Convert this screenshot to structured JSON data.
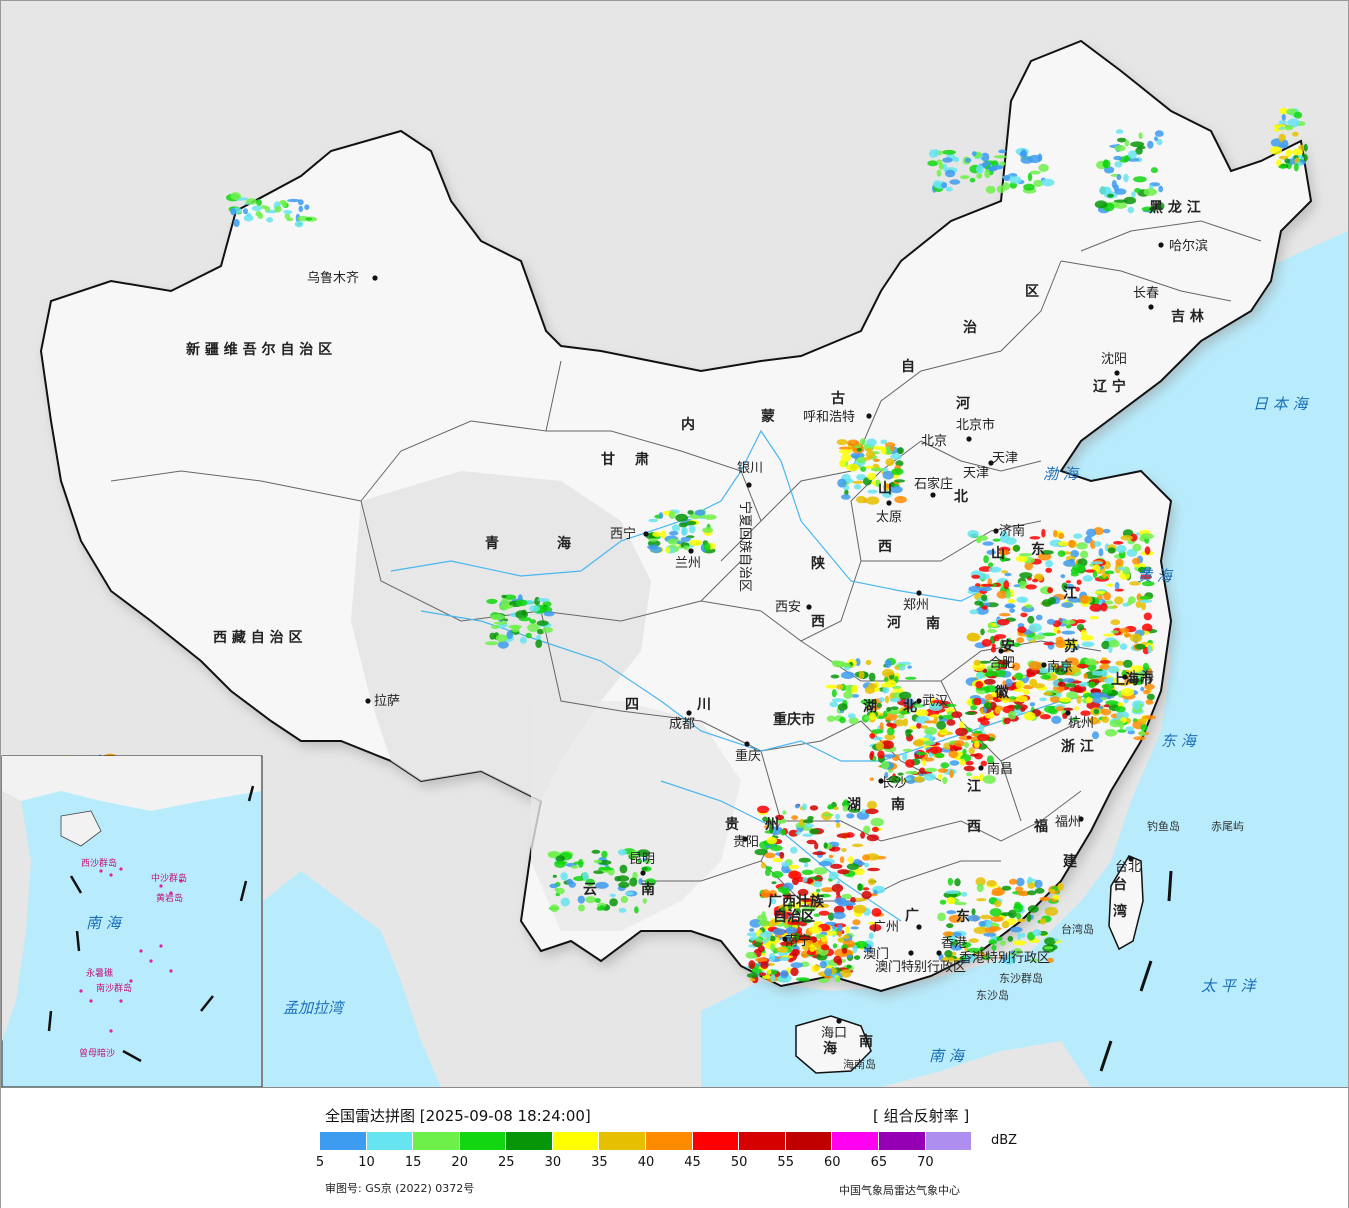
{
  "map": {
    "provinces": [
      {
        "key": "xinjiang",
        "label": "新 疆 维 吾 尔 自 治 区"
      },
      {
        "key": "xizang",
        "label": "西 藏 自 治 区"
      },
      {
        "key": "qinghai_1",
        "label": "青"
      },
      {
        "key": "qinghai_2",
        "label": "海"
      },
      {
        "key": "gansu_1",
        "label": "甘"
      },
      {
        "key": "gansu_2",
        "label": "肃"
      },
      {
        "key": "sichuan_1",
        "label": "四"
      },
      {
        "key": "sichuan_2",
        "label": "川"
      },
      {
        "key": "yunnan_1",
        "label": "云"
      },
      {
        "key": "yunnan_2",
        "label": "南"
      },
      {
        "key": "neimeng_1",
        "label": "内"
      },
      {
        "key": "neimeng_2",
        "label": "蒙"
      },
      {
        "key": "neimeng_3",
        "label": "古"
      },
      {
        "key": "neimeng_4",
        "label": "自"
      },
      {
        "key": "neimeng_5",
        "label": "治"
      },
      {
        "key": "neimeng_6",
        "label": "区"
      },
      {
        "key": "heilongjiang",
        "label": "黑 龙 江"
      },
      {
        "key": "jilin",
        "label": "吉 林"
      },
      {
        "key": "liaoning",
        "label": "辽 宁"
      },
      {
        "key": "hebei_1",
        "label": "河"
      },
      {
        "key": "hebei_2",
        "label": "北"
      },
      {
        "key": "shanxi_1",
        "label": "山"
      },
      {
        "key": "shanxi_2",
        "label": "西"
      },
      {
        "key": "shaanxi_1",
        "label": "陕"
      },
      {
        "key": "shaanxi_2",
        "label": "西"
      },
      {
        "key": "henan_1",
        "label": "河"
      },
      {
        "key": "henan_2",
        "label": "南"
      },
      {
        "key": "shandong_1",
        "label": "山"
      },
      {
        "key": "shandong_2",
        "label": "东"
      },
      {
        "key": "jiangsu_1",
        "label": "江"
      },
      {
        "key": "jiangsu_2",
        "label": "苏"
      },
      {
        "key": "anhui_1",
        "label": "安"
      },
      {
        "key": "anhui_2",
        "label": "徽"
      },
      {
        "key": "hubei_1",
        "label": "湖"
      },
      {
        "key": "hubei_2",
        "label": "北"
      },
      {
        "key": "hunan_1",
        "label": "湖"
      },
      {
        "key": "hunan_2",
        "label": "南"
      },
      {
        "key": "jiangxi_1",
        "label": "江"
      },
      {
        "key": "jiangxi_2",
        "label": "西"
      },
      {
        "key": "zhejiang",
        "label": "浙 江"
      },
      {
        "key": "fujian_1",
        "label": "福"
      },
      {
        "key": "fujian_2",
        "label": "建"
      },
      {
        "key": "guangdong_1",
        "label": "广"
      },
      {
        "key": "guangdong_2",
        "label": "东"
      },
      {
        "key": "guangxi_1",
        "label": "广西壮族"
      },
      {
        "key": "guangxi_2",
        "label": "自治区"
      },
      {
        "key": "guizhou_1",
        "label": "贵"
      },
      {
        "key": "guizhou_2",
        "label": "州"
      },
      {
        "key": "chongqing",
        "label": "重庆市"
      },
      {
        "key": "ningxia",
        "label": "宁夏回族自治区"
      },
      {
        "key": "shanghai",
        "label": "上海市"
      },
      {
        "key": "hainan_1",
        "label": "海"
      },
      {
        "key": "hainan_2",
        "label": "南"
      },
      {
        "key": "taiwan_1",
        "label": "台"
      },
      {
        "key": "taiwan_2",
        "label": "湾"
      },
      {
        "key": "hk",
        "label": "香港特别行政区"
      },
      {
        "key": "macao",
        "label": "澳门特别行政区"
      },
      {
        "key": "beijing_city",
        "label": "北京市"
      },
      {
        "key": "tianjin_city",
        "label": "天津"
      }
    ],
    "cities": [
      {
        "key": "urumqi",
        "label": "乌鲁木齐"
      },
      {
        "key": "lhasa",
        "label": "拉萨"
      },
      {
        "key": "xining",
        "label": "西宁"
      },
      {
        "key": "lanzhou",
        "label": "兰州"
      },
      {
        "key": "yinchuan",
        "label": "银川"
      },
      {
        "key": "hohhot",
        "label": "呼和浩特"
      },
      {
        "key": "beijing",
        "label": "北京"
      },
      {
        "key": "tianjin",
        "label": "天津"
      },
      {
        "key": "shijiazhuang",
        "label": "石家庄"
      },
      {
        "key": "taiyuan",
        "label": "太原"
      },
      {
        "key": "jinan",
        "label": "济南"
      },
      {
        "key": "zhengzhou",
        "label": "郑州"
      },
      {
        "key": "xian",
        "label": "西安"
      },
      {
        "key": "chengdu",
        "label": "成都"
      },
      {
        "key": "chongqing_c",
        "label": "重庆"
      },
      {
        "key": "wuhan",
        "label": "武汉"
      },
      {
        "key": "hefei",
        "label": "合肥"
      },
      {
        "key": "nanjing",
        "label": "南京"
      },
      {
        "key": "shanghai_c",
        "label": "上海"
      },
      {
        "key": "hangzhou",
        "label": "杭州"
      },
      {
        "key": "nanchang",
        "label": "南昌"
      },
      {
        "key": "changsha",
        "label": "长沙"
      },
      {
        "key": "guiyang",
        "label": "贵阳"
      },
      {
        "key": "kunming",
        "label": "昆明"
      },
      {
        "key": "nanning",
        "label": "南宁"
      },
      {
        "key": "guangzhou",
        "label": "广州"
      },
      {
        "key": "hongkong",
        "label": "香港"
      },
      {
        "key": "macau",
        "label": "澳门"
      },
      {
        "key": "fuzhou",
        "label": "福州"
      },
      {
        "key": "taipei",
        "label": "台北"
      },
      {
        "key": "haikou",
        "label": "海口"
      },
      {
        "key": "shenyang",
        "label": "沈阳"
      },
      {
        "key": "changchun",
        "label": "长春"
      },
      {
        "key": "harbin",
        "label": "哈尔滨"
      }
    ],
    "seas": [
      {
        "key": "bohai",
        "label": "渤 海"
      },
      {
        "key": "huanghai",
        "label": "黄 海"
      },
      {
        "key": "donghai",
        "label": "东 海"
      },
      {
        "key": "nanhai",
        "label": "南 海"
      },
      {
        "key": "riben",
        "label": "日 本 海"
      },
      {
        "key": "taipingyang",
        "label": "太 平 洋"
      },
      {
        "key": "mengjiala",
        "label": "孟加拉湾"
      },
      {
        "key": "inset_nanhai",
        "label": "南 海"
      }
    ],
    "islands": [
      {
        "key": "diaoyu",
        "label": "钓鱼岛"
      },
      {
        "key": "chiwei",
        "label": "赤尾屿"
      },
      {
        "key": "taiwandao",
        "label": "台湾岛"
      },
      {
        "key": "dongsha_qd",
        "label": "东沙群岛"
      },
      {
        "key": "dongsha_d",
        "label": "东沙岛"
      },
      {
        "key": "hainandao",
        "label": "海南岛"
      }
    ],
    "inset_labels": [
      {
        "key": "xisha",
        "label": "西沙群岛"
      },
      {
        "key": "zhongsha",
        "label": "中沙群岛"
      },
      {
        "key": "huangyan",
        "label": "黄岩岛"
      },
      {
        "key": "nansha",
        "label": "南沙群岛"
      },
      {
        "key": "zengmu",
        "label": "曾母暗沙"
      },
      {
        "key": "yongshu",
        "label": "永暑礁"
      }
    ]
  },
  "legend": {
    "title": "全国雷达拼图 [2025-09-08 18:24:00]",
    "product": "[ 组合反射率 ]",
    "unit": "dBZ",
    "colors": [
      "#3d9bf0",
      "#66e4f0",
      "#6ef04a",
      "#11d611",
      "#079607",
      "#ffff00",
      "#e6c000",
      "#ff8c00",
      "#ff0000",
      "#d60000",
      "#c00000",
      "#ff00f0",
      "#9600b4",
      "#ae8ff0"
    ],
    "ticks": [
      "5",
      "10",
      "15",
      "20",
      "25",
      "30",
      "35",
      "40",
      "45",
      "50",
      "55",
      "60",
      "65",
      "70"
    ],
    "approval": "审图号: GS京 (2022) 0372号",
    "agency": "中国气象局雷达气象中心"
  }
}
